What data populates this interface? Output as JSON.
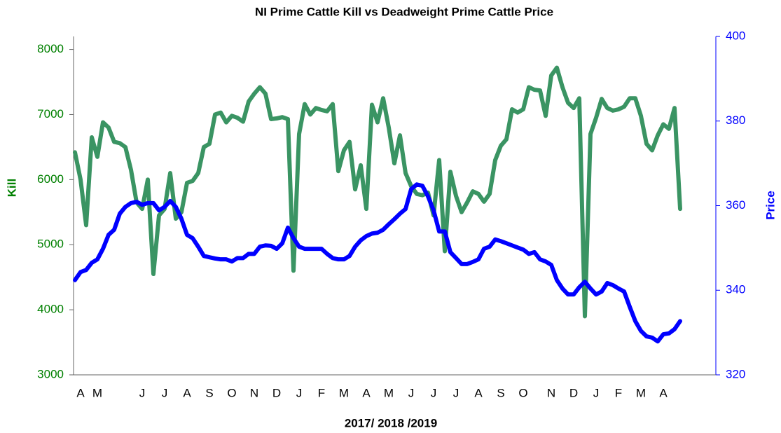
{
  "chart_data": {
    "type": "line",
    "title": "NI Prime Cattle Kill vs Deadweight Prime Cattle Price",
    "x_label": "2017/ 2018 /2019",
    "y_label": "Kill",
    "y2_label": "Price",
    "categories": [
      null,
      "A",
      null,
      null,
      "M",
      null,
      null,
      null,
      null,
      null,
      null,
      null,
      "J",
      null,
      null,
      null,
      "J",
      null,
      null,
      null,
      "A",
      null,
      null,
      null,
      "S",
      null,
      null,
      null,
      "O",
      null,
      null,
      null,
      "N",
      null,
      null,
      null,
      "D",
      null,
      null,
      null,
      "J",
      null,
      null,
      null,
      "F",
      null,
      null,
      null,
      "M",
      null,
      null,
      null,
      "A",
      null,
      null,
      null,
      "M",
      null,
      null,
      null,
      "J",
      null,
      null,
      null,
      "J",
      null,
      null,
      null,
      "J",
      null,
      null,
      null,
      "A",
      null,
      null,
      null,
      "S",
      null,
      null,
      null,
      "O",
      null,
      null,
      null,
      null,
      "N",
      null,
      null,
      null,
      "D",
      null,
      null,
      null,
      "J",
      null,
      null,
      null,
      "F",
      null,
      null,
      null,
      "M",
      null,
      null,
      null,
      "A",
      null,
      null,
      null
    ],
    "series": [
      {
        "color": "#3a9463",
        "axis": "y",
        "values": [
          6420,
          6000,
          5300,
          6650,
          6350,
          6880,
          6800,
          6580,
          6560,
          6500,
          6150,
          5650,
          5550,
          6000,
          4550,
          5450,
          5550,
          6100,
          5400,
          5500,
          5950,
          5980,
          6100,
          6500,
          6550,
          7000,
          7030,
          6880,
          6980,
          6950,
          6890,
          7200,
          7320,
          7420,
          7320,
          6930,
          6940,
          6960,
          6930,
          4600,
          6700,
          7160,
          7000,
          7100,
          7070,
          7050,
          7160,
          6130,
          6450,
          6580,
          5850,
          6220,
          5550,
          7150,
          6880,
          7250,
          6800,
          6250,
          6680,
          6100,
          5900,
          5780,
          5760,
          5800,
          5450,
          6300,
          4900,
          6120,
          5750,
          5500,
          5650,
          5820,
          5780,
          5660,
          5780,
          6300,
          6520,
          6620,
          7080,
          7030,
          7080,
          7420,
          7380,
          7370,
          6980,
          7600,
          7720,
          7420,
          7180,
          7100,
          7250,
          3900,
          6700,
          6950,
          7240,
          7100,
          7060,
          7080,
          7120,
          7250,
          7250,
          6980,
          6550,
          6450,
          6680,
          6850,
          6780,
          7100,
          5550
        ]
      },
      {
        "color": "#0000ff",
        "axis": "y2",
        "values": [
          342.4,
          344.3,
          344.8,
          346.5,
          347.3,
          349.8,
          353.1,
          354.3,
          358.1,
          359.7,
          360.6,
          360.9,
          360.2,
          360.6,
          360.6,
          358.9,
          359.7,
          361.1,
          359.7,
          356.9,
          353.1,
          352.3,
          350.3,
          348.1,
          347.8,
          347.5,
          347.3,
          347.3,
          346.8,
          347.6,
          347.6,
          348.6,
          348.6,
          350.3,
          350.6,
          350.5,
          349.8,
          351.1,
          354.8,
          352.3,
          350.3,
          349.8,
          349.8,
          349.8,
          349.8,
          348.6,
          347.6,
          347.3,
          347.3,
          348.1,
          350.3,
          351.8,
          352.8,
          353.4,
          353.6,
          354.3,
          355.6,
          356.8,
          358.1,
          359.2,
          363.9,
          365.0,
          364.7,
          362.2,
          358.9,
          353.9,
          353.9,
          349.0,
          347.6,
          346.2,
          346.2,
          346.7,
          347.3,
          349.8,
          350.3,
          352.0,
          351.6,
          351.1,
          350.6,
          350.1,
          349.6,
          348.6,
          349.0,
          347.3,
          346.8,
          346.0,
          342.4,
          340.4,
          339.0,
          339.0,
          340.7,
          342.0,
          340.4,
          339.0,
          339.7,
          341.7,
          341.2,
          340.4,
          339.7,
          336.1,
          332.7,
          330.4,
          329.1,
          328.8,
          327.9,
          329.6,
          329.8,
          330.8,
          332.7
        ]
      }
    ],
    "ylim": [
      3000,
      8200
    ],
    "yticks": [
      3000,
      4000,
      5000,
      6000,
      7000,
      8000
    ],
    "y2lim": [
      320,
      400
    ],
    "y2ticks": [
      320,
      340,
      360,
      380,
      400
    ],
    "y_color": "#008000",
    "y2_color": "#0000ff",
    "grid": false
  }
}
